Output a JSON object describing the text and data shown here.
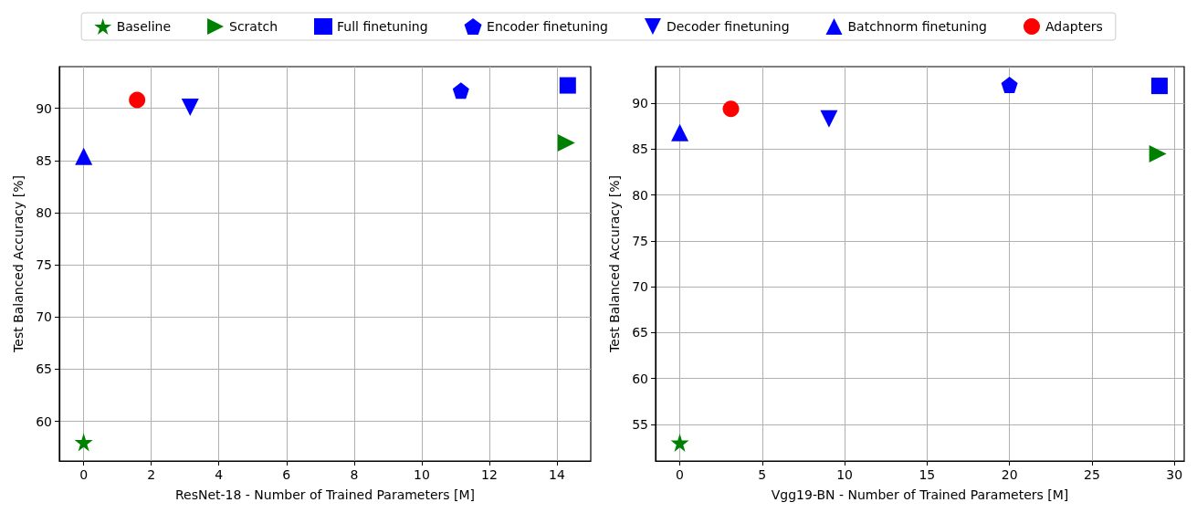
{
  "chart_data": [
    {
      "type": "scatter",
      "xlabel": "ResNet-18 - Number of Trained Parameters [M]",
      "ylabel": "Test Balanced Accuracy [%]",
      "xlim": [
        -0.72,
        15.0
      ],
      "ylim": [
        56.2,
        94.0
      ],
      "xticks": [
        0,
        2,
        4,
        6,
        8,
        10,
        12,
        14
      ],
      "yticks": [
        60,
        65,
        70,
        75,
        80,
        85,
        90
      ],
      "grid": true,
      "legend": "top",
      "series": [
        {
          "name": "Baseline",
          "color": "#008000",
          "marker": "star",
          "x": [
            0
          ],
          "values": [
            58.0
          ]
        },
        {
          "name": "Scratch",
          "color": "#008000",
          "marker": "triangle-right",
          "x": [
            14.28
          ],
          "values": [
            86.7
          ]
        },
        {
          "name": "Full finetuning",
          "color": "#0000ff",
          "marker": "square",
          "x": [
            14.32
          ],
          "values": [
            92.2
          ]
        },
        {
          "name": "Encoder finetuning",
          "color": "#0000ff",
          "x": [
            11.16
          ],
          "values": [
            91.7
          ]
        },
        {
          "name": "Decoder finetuning",
          "color": "#0000ff",
          "marker": "triangle-down",
          "x": [
            3.15
          ],
          "values": [
            90.1
          ]
        },
        {
          "name": "Batchnorm finetuning",
          "color": "#0000ff",
          "marker": "triangle",
          "x": [
            0
          ],
          "values": [
            85.4
          ]
        },
        {
          "name": "Adapters",
          "color": "#ff0000",
          "marker": "circle",
          "x": [
            1.58
          ],
          "values": [
            90.8
          ]
        }
      ]
    },
    {
      "type": "scatter",
      "xlabel": "Vgg19-BN - Number of Trained Parameters [M]",
      "ylabel": "Test Balanced Accuracy [%]",
      "xlim": [
        -1.47,
        30.6
      ],
      "ylim": [
        51.0,
        94.0
      ],
      "xticks": [
        0,
        5,
        10,
        15,
        20,
        25,
        30
      ],
      "yticks": [
        55,
        60,
        65,
        70,
        75,
        80,
        85,
        90
      ],
      "grid": true,
      "series": [
        {
          "color": "#008000",
          "marker": "star",
          "x": [
            0
          ],
          "values": [
            53.0
          ]
        },
        {
          "color": "#008000",
          "marker": "triangle-right",
          "x": [
            29.0
          ],
          "values": [
            84.5
          ]
        },
        {
          "color": "#0000ff",
          "marker": "square",
          "x": [
            29.1
          ],
          "values": [
            91.9
          ]
        },
        {
          "color": "#0000ff",
          "x": [
            20.0
          ],
          "values": [
            92.0
          ]
        },
        {
          "color": "#0000ff",
          "marker": "triangle-down",
          "x": [
            9.05
          ],
          "values": [
            88.3
          ]
        },
        {
          "color": "#0000ff",
          "marker": "triangle",
          "x": [
            0
          ],
          "values": [
            86.8
          ]
        },
        {
          "color": "#ff0000",
          "marker": "circle",
          "x": [
            3.1
          ],
          "values": [
            89.4
          ]
        }
      ]
    }
  ]
}
